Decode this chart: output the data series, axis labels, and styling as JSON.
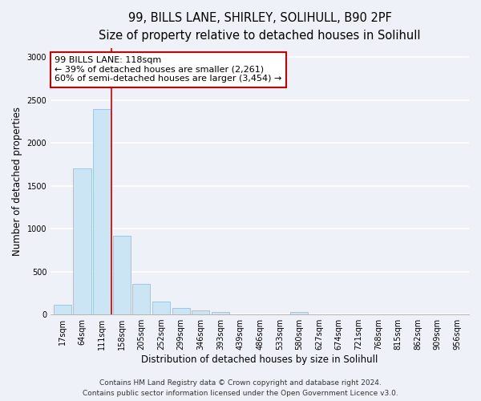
{
  "title_line1": "99, BILLS LANE, SHIRLEY, SOLIHULL, B90 2PF",
  "title_line2": "Size of property relative to detached houses in Solihull",
  "xlabel": "Distribution of detached houses by size in Solihull",
  "ylabel": "Number of detached properties",
  "bin_labels": [
    "17sqm",
    "64sqm",
    "111sqm",
    "158sqm",
    "205sqm",
    "252sqm",
    "299sqm",
    "346sqm",
    "393sqm",
    "439sqm",
    "486sqm",
    "533sqm",
    "580sqm",
    "627sqm",
    "674sqm",
    "721sqm",
    "768sqm",
    "815sqm",
    "862sqm",
    "909sqm",
    "956sqm"
  ],
  "bar_values": [
    110,
    1700,
    2390,
    920,
    355,
    150,
    75,
    50,
    30,
    0,
    0,
    0,
    30,
    0,
    0,
    0,
    0,
    0,
    0,
    0,
    0
  ],
  "bar_color": "#cce5f5",
  "bar_edge_color": "#88b8d8",
  "highlight_bar_index": 2,
  "highlight_bar_color": "#a8d0ea",
  "vline_x": 2.5,
  "vline_color": "#cc0000",
  "annotation_box_text": "99 BILLS LANE: 118sqm\n← 39% of detached houses are smaller (2,261)\n60% of semi-detached houses are larger (3,454) →",
  "annotation_box_color": "white",
  "annotation_box_edgecolor": "#cc0000",
  "footer_line1": "Contains HM Land Registry data © Crown copyright and database right 2024.",
  "footer_line2": "Contains public sector information licensed under the Open Government Licence v3.0.",
  "ylim": [
    0,
    3100
  ],
  "yticks": [
    0,
    500,
    1000,
    1500,
    2000,
    2500,
    3000
  ],
  "background_color": "#eef2f8",
  "grid_color": "white",
  "title_fontsize": 10.5,
  "subtitle_fontsize": 9.5,
  "axis_label_fontsize": 8.5,
  "tick_fontsize": 7,
  "annotation_fontsize": 8,
  "footer_fontsize": 6.5
}
